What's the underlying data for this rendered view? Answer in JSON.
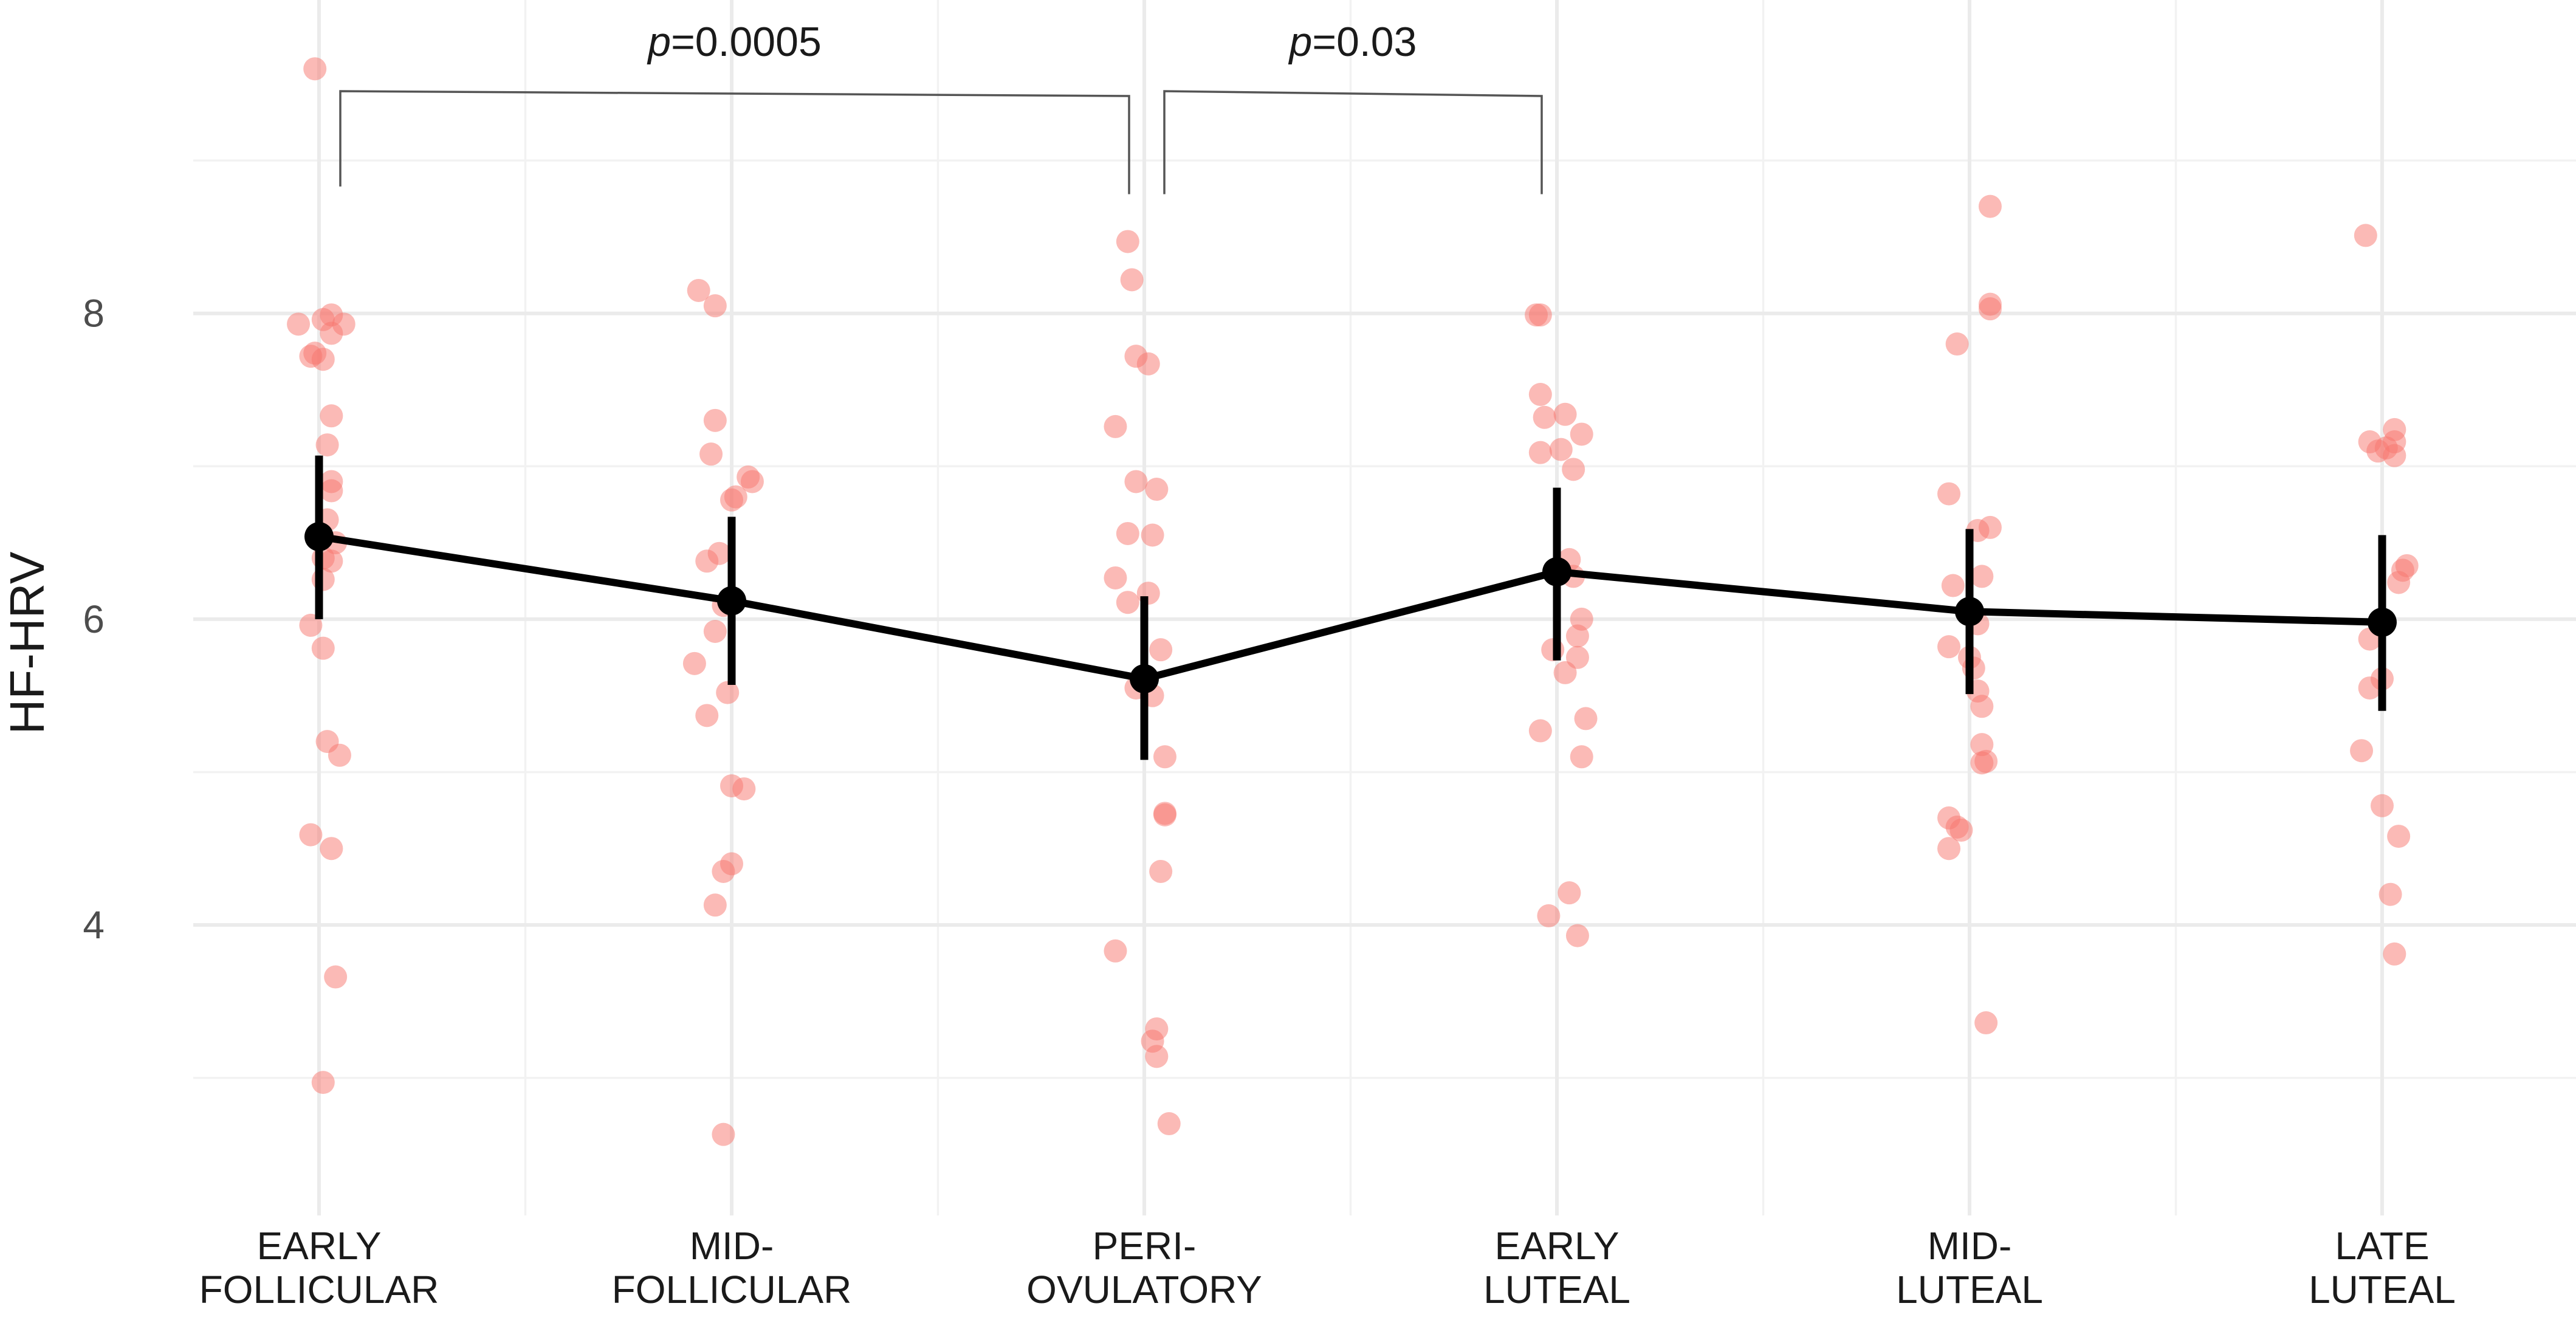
{
  "chart_data": {
    "type": "scatter",
    "ylabel": "HF-HRV",
    "xlabel": "",
    "ylim": [
      2.1,
      10.05
    ],
    "yticks": [
      4,
      6,
      8
    ],
    "ytick_labels": [
      "4",
      "6",
      "8"
    ],
    "y_minor_ticks": [
      3,
      5,
      7,
      9
    ],
    "grid": true,
    "categories": [
      {
        "id": "early-follicular",
        "lines": [
          "EARLY",
          "FOLLICULAR"
        ]
      },
      {
        "id": "mid-follicular",
        "lines": [
          "MID-",
          "FOLLICULAR"
        ]
      },
      {
        "id": "peri-ovulatory",
        "lines": [
          "PERI-",
          "OVULATORY"
        ]
      },
      {
        "id": "early-luteal",
        "lines": [
          "EARLY",
          "LUTEAL"
        ]
      },
      {
        "id": "mid-luteal",
        "lines": [
          "MID-",
          "LUTEAL"
        ]
      },
      {
        "id": "late-luteal",
        "lines": [
          "LATE",
          "LUTEAL"
        ]
      }
    ],
    "colors": {
      "points": "#f8766d",
      "mean": "#000000",
      "bracket": "#555555",
      "grid": "#ebebeb",
      "text": "#1a1a1a"
    },
    "summary": {
      "name": "mean",
      "means": [
        6.54,
        6.12,
        5.61,
        6.31,
        6.05,
        5.98
      ],
      "lower": [
        6.0,
        5.57,
        5.08,
        5.73,
        5.51,
        5.4
      ],
      "upper": [
        7.07,
        6.67,
        6.15,
        6.86,
        6.59,
        6.55
      ]
    },
    "points": [
      [
        {
          "dx": -0.01,
          "y": 9.6
        },
        {
          "dx": -0.05,
          "y": 7.93
        },
        {
          "dx": 0.03,
          "y": 7.99
        },
        {
          "dx": 0.01,
          "y": 7.96
        },
        {
          "dx": 0.06,
          "y": 7.93
        },
        {
          "dx": 0.03,
          "y": 7.87
        },
        {
          "dx": -0.01,
          "y": 7.74
        },
        {
          "dx": 0.01,
          "y": 7.7
        },
        {
          "dx": -0.02,
          "y": 7.72
        },
        {
          "dx": 0.03,
          "y": 7.33
        },
        {
          "dx": 0.02,
          "y": 7.14
        },
        {
          "dx": 0.03,
          "y": 6.9
        },
        {
          "dx": 0.03,
          "y": 6.84
        },
        {
          "dx": 0.02,
          "y": 6.65
        },
        {
          "dx": 0.04,
          "y": 6.5
        },
        {
          "dx": 0.01,
          "y": 6.4
        },
        {
          "dx": 0.03,
          "y": 6.38
        },
        {
          "dx": 0.01,
          "y": 6.26
        },
        {
          "dx": -0.02,
          "y": 5.96
        },
        {
          "dx": 0.01,
          "y": 5.81
        },
        {
          "dx": 0.02,
          "y": 5.2
        },
        {
          "dx": 0.05,
          "y": 5.11
        },
        {
          "dx": -0.02,
          "y": 4.59
        },
        {
          "dx": 0.03,
          "y": 4.5
        },
        {
          "dx": 0.04,
          "y": 3.66
        },
        {
          "dx": 0.01,
          "y": 2.97
        }
      ],
      [
        {
          "dx": -0.08,
          "y": 8.15
        },
        {
          "dx": -0.04,
          "y": 8.05
        },
        {
          "dx": -0.04,
          "y": 7.3
        },
        {
          "dx": -0.05,
          "y": 7.08
        },
        {
          "dx": 0.04,
          "y": 6.93
        },
        {
          "dx": 0.05,
          "y": 6.9
        },
        {
          "dx": 0.01,
          "y": 6.8
        },
        {
          "dx": 0.0,
          "y": 6.78
        },
        {
          "dx": -0.03,
          "y": 6.43
        },
        {
          "dx": -0.06,
          "y": 6.38
        },
        {
          "dx": -0.02,
          "y": 6.09
        },
        {
          "dx": -0.04,
          "y": 5.92
        },
        {
          "dx": -0.09,
          "y": 5.71
        },
        {
          "dx": -0.01,
          "y": 5.52
        },
        {
          "dx": -0.06,
          "y": 5.37
        },
        {
          "dx": 0.0,
          "y": 4.91
        },
        {
          "dx": 0.03,
          "y": 4.89
        },
        {
          "dx": 0.0,
          "y": 4.4
        },
        {
          "dx": -0.02,
          "y": 4.35
        },
        {
          "dx": -0.04,
          "y": 4.13
        },
        {
          "dx": -0.02,
          "y": 2.63
        }
      ],
      [
        {
          "dx": -0.04,
          "y": 8.47
        },
        {
          "dx": -0.03,
          "y": 8.22
        },
        {
          "dx": -0.02,
          "y": 7.72
        },
        {
          "dx": 0.01,
          "y": 7.67
        },
        {
          "dx": -0.07,
          "y": 7.26
        },
        {
          "dx": -0.02,
          "y": 6.9
        },
        {
          "dx": 0.03,
          "y": 6.85
        },
        {
          "dx": -0.04,
          "y": 6.56
        },
        {
          "dx": 0.02,
          "y": 6.55
        },
        {
          "dx": -0.07,
          "y": 6.27
        },
        {
          "dx": 0.01,
          "y": 6.17
        },
        {
          "dx": -0.04,
          "y": 6.11
        },
        {
          "dx": 0.04,
          "y": 5.8
        },
        {
          "dx": -0.02,
          "y": 5.55
        },
        {
          "dx": 0.02,
          "y": 5.5
        },
        {
          "dx": 0.05,
          "y": 5.1
        },
        {
          "dx": 0.05,
          "y": 4.73
        },
        {
          "dx": 0.05,
          "y": 4.72
        },
        {
          "dx": 0.04,
          "y": 4.35
        },
        {
          "dx": -0.07,
          "y": 3.83
        },
        {
          "dx": 0.03,
          "y": 3.32
        },
        {
          "dx": 0.02,
          "y": 3.24
        },
        {
          "dx": 0.03,
          "y": 3.14
        },
        {
          "dx": 0.06,
          "y": 2.7
        }
      ],
      [
        {
          "dx": -0.05,
          "y": 7.99
        },
        {
          "dx": -0.04,
          "y": 7.99
        },
        {
          "dx": -0.04,
          "y": 7.47
        },
        {
          "dx": -0.03,
          "y": 7.32
        },
        {
          "dx": 0.02,
          "y": 7.34
        },
        {
          "dx": 0.06,
          "y": 7.21
        },
        {
          "dx": 0.01,
          "y": 7.11
        },
        {
          "dx": -0.04,
          "y": 7.09
        },
        {
          "dx": 0.04,
          "y": 6.98
        },
        {
          "dx": 0.03,
          "y": 6.39
        },
        {
          "dx": 0.04,
          "y": 6.28
        },
        {
          "dx": 0.06,
          "y": 6.0
        },
        {
          "dx": 0.05,
          "y": 5.89
        },
        {
          "dx": -0.01,
          "y": 5.8
        },
        {
          "dx": 0.05,
          "y": 5.75
        },
        {
          "dx": 0.02,
          "y": 5.65
        },
        {
          "dx": 0.07,
          "y": 5.35
        },
        {
          "dx": -0.04,
          "y": 5.27
        },
        {
          "dx": 0.06,
          "y": 5.1
        },
        {
          "dx": 0.03,
          "y": 4.21
        },
        {
          "dx": -0.02,
          "y": 4.06
        },
        {
          "dx": 0.05,
          "y": 3.93
        }
      ],
      [
        {
          "dx": 0.05,
          "y": 8.7
        },
        {
          "dx": 0.05,
          "y": 8.03
        },
        {
          "dx": 0.05,
          "y": 8.06
        },
        {
          "dx": -0.03,
          "y": 7.8
        },
        {
          "dx": -0.05,
          "y": 6.82
        },
        {
          "dx": 0.02,
          "y": 6.58
        },
        {
          "dx": 0.05,
          "y": 6.6
        },
        {
          "dx": 0.03,
          "y": 6.28
        },
        {
          "dx": -0.04,
          "y": 6.22
        },
        {
          "dx": 0.02,
          "y": 5.97
        },
        {
          "dx": -0.05,
          "y": 5.82
        },
        {
          "dx": 0.0,
          "y": 5.75
        },
        {
          "dx": 0.01,
          "y": 5.68
        },
        {
          "dx": 0.02,
          "y": 5.53
        },
        {
          "dx": 0.03,
          "y": 5.43
        },
        {
          "dx": 0.03,
          "y": 5.18
        },
        {
          "dx": 0.04,
          "y": 5.07
        },
        {
          "dx": 0.03,
          "y": 5.06
        },
        {
          "dx": -0.05,
          "y": 4.7
        },
        {
          "dx": -0.03,
          "y": 4.64
        },
        {
          "dx": -0.02,
          "y": 4.62
        },
        {
          "dx": -0.05,
          "y": 4.5
        },
        {
          "dx": 0.04,
          "y": 3.36
        }
      ],
      [
        {
          "dx": -0.04,
          "y": 8.51
        },
        {
          "dx": 0.03,
          "y": 7.24
        },
        {
          "dx": -0.03,
          "y": 7.16
        },
        {
          "dx": 0.03,
          "y": 7.16
        },
        {
          "dx": 0.01,
          "y": 7.12
        },
        {
          "dx": -0.01,
          "y": 7.1
        },
        {
          "dx": 0.03,
          "y": 7.07
        },
        {
          "dx": 0.06,
          "y": 6.35
        },
        {
          "dx": 0.05,
          "y": 6.32
        },
        {
          "dx": 0.04,
          "y": 6.24
        },
        {
          "dx": -0.03,
          "y": 5.87
        },
        {
          "dx": 0.0,
          "y": 5.61
        },
        {
          "dx": -0.03,
          "y": 5.55
        },
        {
          "dx": -0.05,
          "y": 5.14
        },
        {
          "dx": 0.0,
          "y": 4.78
        },
        {
          "dx": 0.04,
          "y": 4.58
        },
        {
          "dx": 0.02,
          "y": 4.2
        },
        {
          "dx": 0.03,
          "y": 3.81
        }
      ]
    ],
    "annotations": [
      {
        "from": 0,
        "to": 2,
        "label": "=0.0005",
        "italic_prefix": "p",
        "left_drop": 8.83,
        "right_drop": 8.78
      },
      {
        "from": 2,
        "to": 3,
        "label": "=0.03",
        "italic_prefix": "p",
        "left_drop": 8.78,
        "right_drop": 8.78
      }
    ]
  }
}
